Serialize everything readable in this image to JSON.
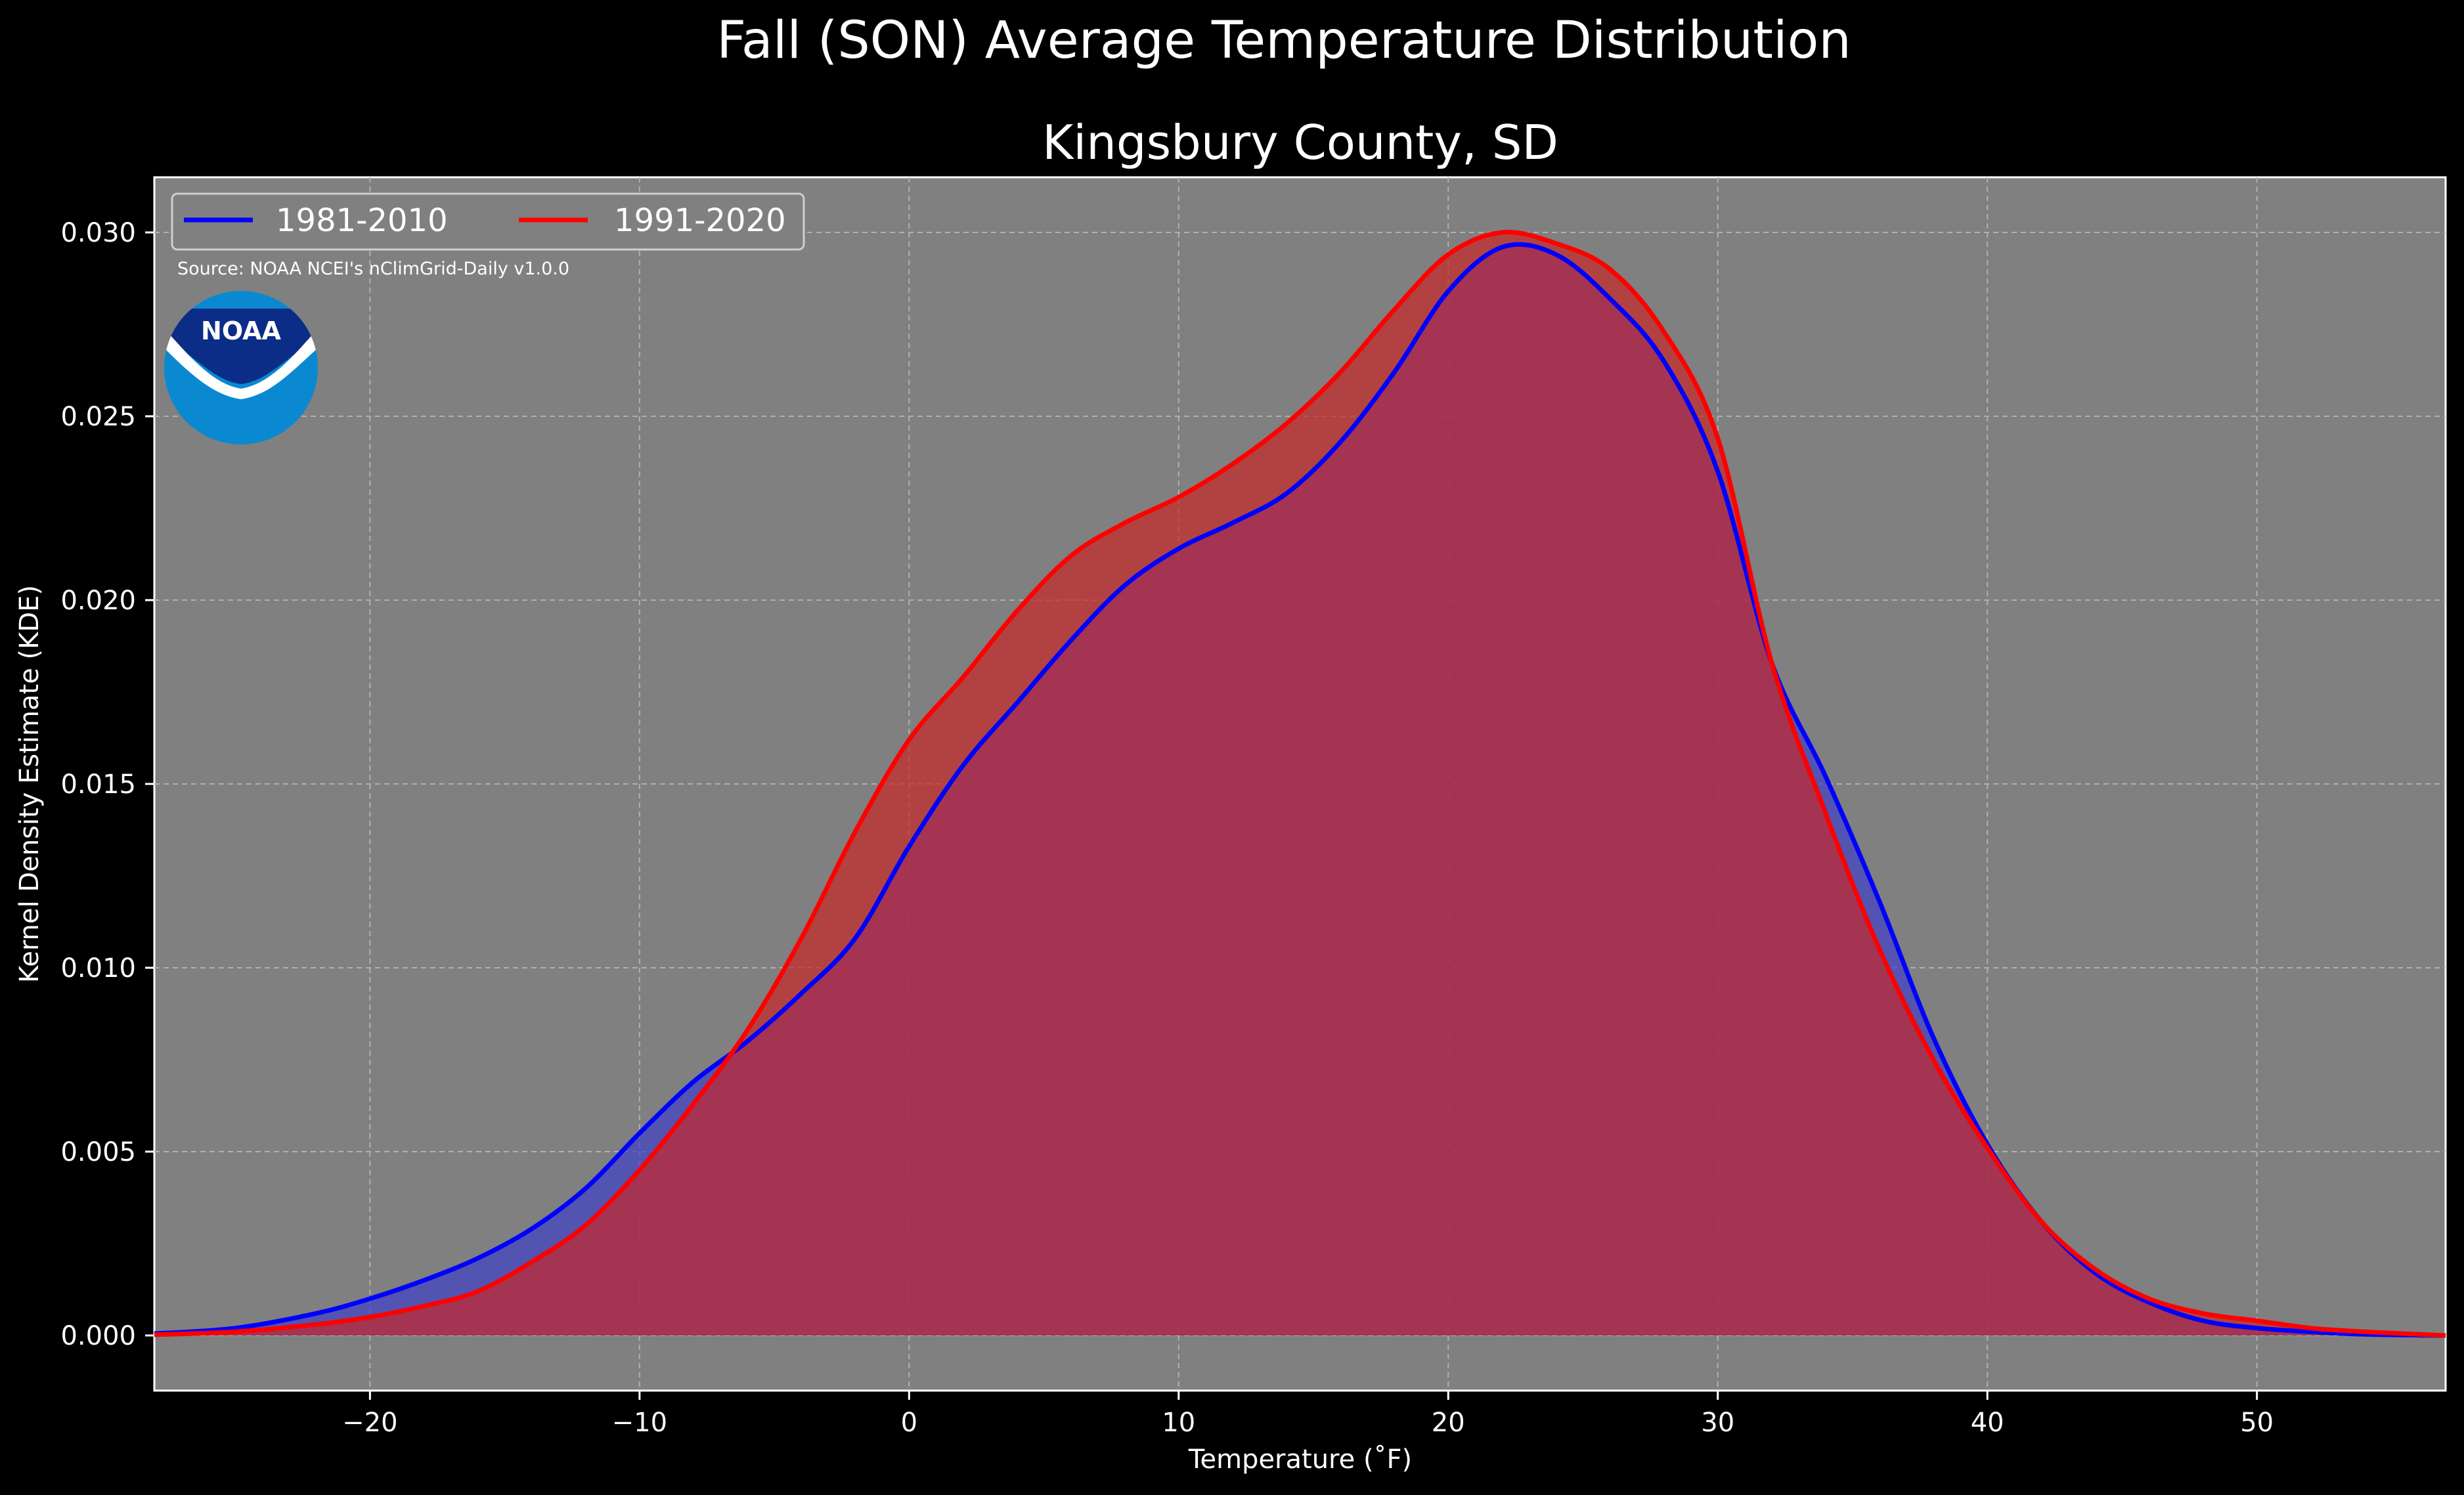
{
  "chart_data": {
    "type": "area",
    "title": "Fall (SON) Average Temperature Distribution",
    "subtitle": "Kingsbury County, SD",
    "xlabel": "Temperature (˚F)",
    "ylabel": "Kernel Density Estimate (KDE)",
    "source": "Source: NOAA NCEI's nClimGrid-Daily v1.0.0",
    "logo": "NOAA",
    "xlim": [
      -28,
      57
    ],
    "ylim": [
      -0.0015,
      0.0315
    ],
    "xticks": [
      -20,
      -10,
      0,
      10,
      20,
      30,
      40,
      50
    ],
    "yticks": [
      0.0,
      0.005,
      0.01,
      0.015,
      0.02,
      0.025,
      0.03
    ],
    "xtick_labels": [
      "−20",
      "−10",
      "0",
      "10",
      "20",
      "30",
      "40",
      "50"
    ],
    "ytick_labels": [
      "0.000",
      "0.005",
      "0.010",
      "0.015",
      "0.020",
      "0.025",
      "0.030"
    ],
    "grid": true,
    "legend_position": "top-left",
    "background_color": "#808080",
    "x": [
      -28,
      -25,
      -22,
      -20,
      -18,
      -16,
      -14,
      -12,
      -10,
      -8,
      -6,
      -4,
      -2,
      0,
      2,
      4,
      6,
      8,
      10,
      12,
      14,
      16,
      18,
      20,
      22,
      24,
      26,
      28,
      30,
      32,
      34,
      36,
      38,
      40,
      42,
      44,
      46,
      48,
      50,
      52,
      54,
      57
    ],
    "series": [
      {
        "name": "1981-2010",
        "color": "#0000ff",
        "fill": "#4040c8",
        "values": [
          5e-05,
          0.0002,
          0.0006,
          0.001,
          0.0015,
          0.0021,
          0.0029,
          0.004,
          0.0055,
          0.0069,
          0.008,
          0.0093,
          0.0108,
          0.0133,
          0.0155,
          0.0172,
          0.0189,
          0.0204,
          0.0214,
          0.0221,
          0.0229,
          0.0243,
          0.0262,
          0.0284,
          0.0296,
          0.0294,
          0.0282,
          0.0265,
          0.0235,
          0.0183,
          0.0152,
          0.0118,
          0.0081,
          0.0052,
          0.0031,
          0.0017,
          0.0009,
          0.0004,
          0.0002,
          0.0001,
          3e-05,
          0.0
        ]
      },
      {
        "name": "1991-2020",
        "color": "#ff0000",
        "fill": "#c82828",
        "values": [
          2e-05,
          0.0001,
          0.0003,
          0.0005,
          0.0008,
          0.0012,
          0.002,
          0.003,
          0.0045,
          0.0063,
          0.0083,
          0.0108,
          0.0137,
          0.0162,
          0.0179,
          0.0197,
          0.0212,
          0.0221,
          0.0228,
          0.0237,
          0.0248,
          0.0262,
          0.0279,
          0.0294,
          0.03,
          0.0297,
          0.029,
          0.0273,
          0.0244,
          0.0183,
          0.0142,
          0.0105,
          0.0075,
          0.0051,
          0.0031,
          0.0018,
          0.001,
          0.0006,
          0.0004,
          0.0002,
          0.0001,
          0.0
        ]
      }
    ]
  }
}
